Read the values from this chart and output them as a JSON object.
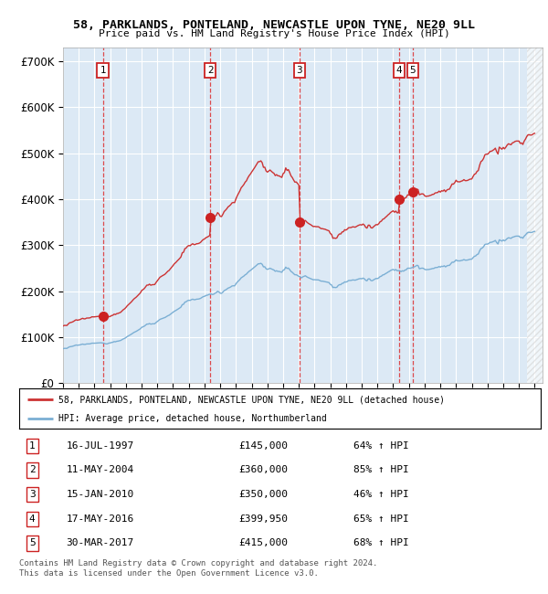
{
  "title_line1": "58, PARKLANDS, PONTELAND, NEWCASTLE UPON TYNE, NE20 9LL",
  "title_line2": "Price paid vs. HM Land Registry's House Price Index (HPI)",
  "ylabel_ticks": [
    "£0",
    "£100K",
    "£200K",
    "£300K",
    "£400K",
    "£500K",
    "£600K",
    "£700K"
  ],
  "ylim": [
    0,
    730000
  ],
  "xlim_start": 1995.0,
  "xlim_end": 2025.5,
  "hpi_color": "#7bafd4",
  "price_color": "#cc3333",
  "bg_color": "#dce9f5",
  "legend_label_price": "58, PARKLANDS, PONTELAND, NEWCASTLE UPON TYNE, NE20 9LL (detached house)",
  "legend_label_hpi": "HPI: Average price, detached house, Northumberland",
  "sales": [
    {
      "num": 1,
      "date_x": 1997.54,
      "price": 145000,
      "label": "16-JUL-1997",
      "price_str": "£145,000",
      "pct": "64%"
    },
    {
      "num": 2,
      "date_x": 2004.36,
      "price": 360000,
      "label": "11-MAY-2004",
      "price_str": "£360,000",
      "pct": "85%"
    },
    {
      "num": 3,
      "date_x": 2010.04,
      "price": 350000,
      "label": "15-JAN-2010",
      "price_str": "£350,000",
      "pct": "46%"
    },
    {
      "num": 4,
      "date_x": 2016.38,
      "price": 399950,
      "label": "17-MAY-2016",
      "price_str": "£399,950",
      "pct": "65%"
    },
    {
      "num": 5,
      "date_x": 2017.24,
      "price": 415000,
      "label": "30-MAR-2017",
      "price_str": "£415,000",
      "pct": "68%"
    }
  ],
  "footer": "Contains HM Land Registry data © Crown copyright and database right 2024.\nThis data is licensed under the Open Government Licence v3.0."
}
